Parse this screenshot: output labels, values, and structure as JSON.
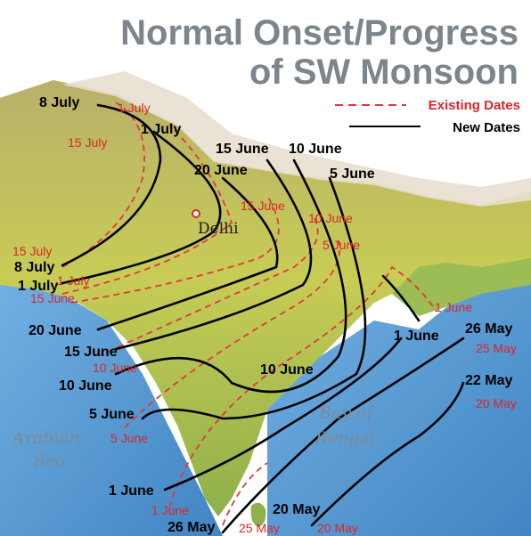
{
  "title": {
    "line1": "Normal Onset/Progress",
    "line2": "of SW Monsoon"
  },
  "legend": {
    "existing": "Existing Dates",
    "new": "New Dates"
  },
  "colors": {
    "existing_line": "#e0383c",
    "new_line": "#000000",
    "sea": "#2f7fc4",
    "land": "#c8c85a",
    "title": "#7d858c"
  },
  "places": {
    "city": "Delhi",
    "sea_west_1": "Arabian",
    "sea_west_2": "Sea",
    "sea_east_1": "Bay of",
    "sea_east_2": "Bengal"
  },
  "new_dates": [
    "8 July",
    "1 July",
    "15 June",
    "20 June",
    "10 June",
    "5 June",
    "8 July",
    "1 July",
    "20 June",
    "15 June",
    "10 June",
    "5 June",
    "1 June",
    "26 May",
    "20 May",
    "10 June",
    "1 June",
    "26 May",
    "22 May"
  ],
  "existing_dates": [
    "1 July",
    "15 July",
    "15 June",
    "10 June",
    "5 June",
    "15 July",
    "1 July",
    "15 June",
    "10 June",
    "5 June",
    "1 June",
    "25 May",
    "20 May",
    "1 June",
    "25 May",
    "20 May"
  ]
}
